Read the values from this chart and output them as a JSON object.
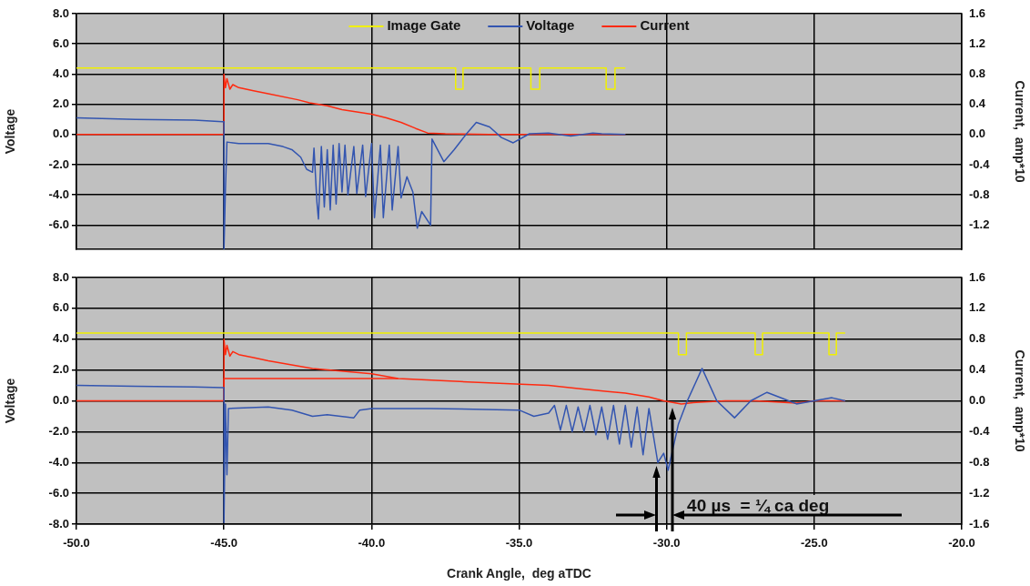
{
  "chart_data": [
    {
      "type": "line",
      "ylabel": "Voltage",
      "y2label": "Current,  amp*10",
      "legend": "top",
      "grid": true,
      "marker": "none",
      "tick_labels": "y",
      "xlim": [
        -50,
        -20
      ],
      "xticks": [
        -50,
        -45,
        -40,
        -35,
        -30,
        -25,
        -20
      ],
      "ylim": [
        -7.6,
        8
      ],
      "yticks": [
        {
          "value": 8,
          "label": "8.0"
        },
        {
          "value": 6,
          "label": "6.0"
        },
        {
          "value": 4,
          "label": "4.0"
        },
        {
          "value": 2,
          "label": "2.0"
        },
        {
          "value": 0,
          "label": "0.0"
        },
        {
          "value": -2,
          "label": "-2.0"
        },
        {
          "value": -4,
          "label": "-4.0"
        },
        {
          "value": -6,
          "label": "-6.0"
        }
      ],
      "y2lim": [
        -1.52,
        1.6
      ],
      "y2ticks": [
        1.6,
        1.2,
        0.8,
        0.4,
        {
          "value": 0,
          "label": "0.0"
        },
        -0.4,
        -0.8,
        -1.2
      ],
      "series": [
        {
          "name": "Image Gate",
          "color": "#f0f000",
          "x": [
            -50,
            -37.15,
            -37.15,
            -36.9,
            -36.9,
            -34.6,
            -34.6,
            -34.3,
            -34.3,
            -32.05,
            -32.05,
            -31.75,
            -31.75,
            -31.4
          ],
          "values": [
            4.4,
            4.4,
            3,
            3,
            4.4,
            4.4,
            3,
            3,
            4.4,
            4.4,
            3,
            3,
            4.4,
            4.4
          ]
        },
        {
          "name": "Voltage",
          "color": "#3355b0",
          "x": [
            -50,
            -48,
            -46,
            -45.05,
            -45,
            -45,
            -44.95,
            -44.9,
            -44.5,
            -43.5,
            -43,
            -42.7,
            -42.4,
            -42.2,
            -42.0,
            -41.95,
            -41.85,
            -41.8,
            -41.7,
            -41.6,
            -41.5,
            -41.4,
            -41.3,
            -41.2,
            -41.1,
            -41.0,
            -40.9,
            -40.8,
            -40.6,
            -40.5,
            -40.3,
            -40.2,
            -40.0,
            -39.9,
            -39.7,
            -39.6,
            -39.4,
            -39.3,
            -39.1,
            -39.0,
            -38.8,
            -38.6,
            -38.45,
            -38.3,
            -38.0,
            -37.95,
            -37.55,
            -37.2,
            -36.8,
            -36.45,
            -36.0,
            -35.6,
            -35.2,
            -34.65,
            -34.0,
            -33.25,
            -32.5,
            -32.2,
            -31.4
          ],
          "values": [
            1.1,
            1.0,
            0.95,
            0.85,
            0.85,
            -7.6,
            -3.6,
            -0.5,
            -0.6,
            -0.6,
            -0.8,
            -1.0,
            -1.5,
            -2.3,
            -2.5,
            -0.9,
            -4.5,
            -5.6,
            -0.8,
            -4.8,
            -1.0,
            -5.0,
            -0.7,
            -4.6,
            -0.6,
            -3.8,
            -0.7,
            -4.0,
            -0.8,
            -3.9,
            -0.7,
            -4.1,
            -0.6,
            -5.5,
            -0.7,
            -5.5,
            -0.7,
            -5.0,
            -0.8,
            -4.2,
            -2.8,
            -3.8,
            -6.2,
            -5.1,
            -6.0,
            -0.3,
            -1.8,
            -1.0,
            0.0,
            0.8,
            0.5,
            -0.2,
            -0.55,
            0.05,
            0.1,
            -0.1,
            0.1,
            0.05,
            0.0
          ]
        },
        {
          "name": "Current",
          "color": "#ff2a10",
          "axis": "y2",
          "x": [
            -50,
            -45,
            -45,
            -44.95,
            -44.9,
            -44.8,
            -44.7,
            -44.5,
            -44,
            -43.5,
            -42.5,
            -42.1,
            -41.5,
            -41,
            -40.5,
            -40,
            -39.5,
            -39,
            -38.5,
            -38.1,
            -37.5,
            -36,
            -34,
            -31.4
          ],
          "values": [
            0,
            0,
            0.8,
            0.62,
            0.74,
            0.6,
            0.66,
            0.62,
            0.58,
            0.54,
            0.46,
            0.42,
            0.38,
            0.33,
            0.3,
            0.27,
            0.22,
            0.16,
            0.08,
            0.02,
            0.01,
            0,
            0,
            0
          ]
        }
      ]
    },
    {
      "type": "line",
      "xlabel": "Crank Angle,  deg aTDC",
      "ylabel": "Voltage",
      "y2label": "Current,  amp*10",
      "grid": true,
      "marker": "none",
      "annotations": [
        "40 µs  = ¼ ca deg"
      ],
      "xlim": [
        -50,
        -20
      ],
      "xticks": [
        {
          "value": -50,
          "label": "-50.0"
        },
        {
          "value": -45,
          "label": "-45.0"
        },
        {
          "value": -40,
          "label": "-40.0"
        },
        {
          "value": -35,
          "label": "-35.0"
        },
        {
          "value": -30,
          "label": "-30.0"
        },
        {
          "value": -25,
          "label": "-25.0"
        },
        {
          "value": -20,
          "label": "-20.0"
        }
      ],
      "ylim": [
        -8,
        8
      ],
      "yticks": [
        {
          "value": 8,
          "label": "8.0"
        },
        {
          "value": 6,
          "label": "6.0"
        },
        {
          "value": 4,
          "label": "4.0"
        },
        {
          "value": 2,
          "label": "2.0"
        },
        {
          "value": 0,
          "label": "0.0"
        },
        {
          "value": -2,
          "label": "-2.0"
        },
        {
          "value": -4,
          "label": "-4.0"
        },
        {
          "value": -6,
          "label": "-6.0"
        },
        {
          "value": -8,
          "label": "-8.0"
        }
      ],
      "y2lim": [
        -1.6,
        1.6
      ],
      "y2ticks": [
        1.6,
        1.2,
        0.8,
        0.4,
        {
          "value": 0,
          "label": "0.0"
        },
        -0.4,
        -0.8,
        -1.2,
        -1.6
      ],
      "series": [
        {
          "color": "#f0f000",
          "x": [
            -50,
            -29.6,
            -29.6,
            -29.33,
            -29.33,
            -27.0,
            -27.0,
            -26.75,
            -26.75,
            -24.5,
            -24.5,
            -24.25,
            -24.25,
            -23.95
          ],
          "values": [
            4.4,
            4.4,
            3,
            3,
            4.4,
            4.4,
            3,
            3,
            4.4,
            4.4,
            3,
            3,
            4.4,
            4.4
          ]
        },
        {
          "color": "#3355b0",
          "x": [
            -50,
            -48,
            -46,
            -45.05,
            -45,
            -45,
            -44.95,
            -44.9,
            -44.85,
            -43.5,
            -42.7,
            -42,
            -41.5,
            -40.6,
            -40.4,
            -40,
            -38,
            -35,
            -34.5,
            -34,
            -33.8,
            -33.6,
            -33.4,
            -33.2,
            -33.0,
            -32.8,
            -32.6,
            -32.4,
            -32.2,
            -32.0,
            -31.8,
            -31.6,
            -31.4,
            -31.2,
            -31.0,
            -30.8,
            -30.6,
            -30.3,
            -30.1,
            -29.95,
            -29.6,
            -29.3,
            -28.8,
            -28.3,
            -27.7,
            -27.15,
            -26.6,
            -26.0,
            -25.6,
            -25.0,
            -24.4,
            -23.95
          ],
          "values": [
            1.0,
            0.95,
            0.9,
            0.85,
            0.85,
            -7.9,
            -0.2,
            -4.8,
            -0.5,
            -0.4,
            -0.6,
            -1.0,
            -0.9,
            -1.1,
            -0.6,
            -0.5,
            -0.5,
            -0.6,
            -1.0,
            -0.8,
            -0.3,
            -1.9,
            -0.3,
            -2.0,
            -0.4,
            -2.0,
            -0.3,
            -2.2,
            -0.4,
            -2.5,
            -0.3,
            -2.8,
            -0.3,
            -3.0,
            -0.4,
            -3.5,
            -0.5,
            -4.0,
            -3.4,
            -4.5,
            -1.5,
            0.0,
            2.1,
            0.0,
            -1.1,
            0.0,
            0.55,
            0.1,
            -0.2,
            0.0,
            0.2,
            0.0
          ]
        },
        {
          "color": "#ff2a10",
          "axis": "y2",
          "x": [
            -50,
            -45,
            -45,
            -44.95,
            -44.9,
            -44.8,
            -44.7,
            -44.5,
            -44,
            -43.5,
            -42,
            -40,
            -39.1,
            -37,
            -35.3,
            -34,
            -33,
            -32,
            -31.4,
            -30.6,
            -30.1,
            -29.5,
            -29,
            -28,
            -27,
            -25.6,
            -25,
            -23.95
          ],
          "values": [
            0,
            0,
            0.8,
            0.6,
            0.72,
            0.58,
            0.64,
            0.6,
            0.56,
            0.52,
            0.42,
            0.35,
            0.29,
            0.25,
            0.22,
            0.2,
            0.16,
            0.12,
            0.1,
            0.05,
            0,
            -0.04,
            -0.02,
            0,
            0,
            -0.03,
            0,
            0
          ]
        },
        {
          "color": "#ff2a10",
          "axis": "y2",
          "x": [
            -45,
            -45,
            -39.1
          ],
          "values": [
            0,
            0.29,
            0.29
          ]
        }
      ]
    }
  ]
}
